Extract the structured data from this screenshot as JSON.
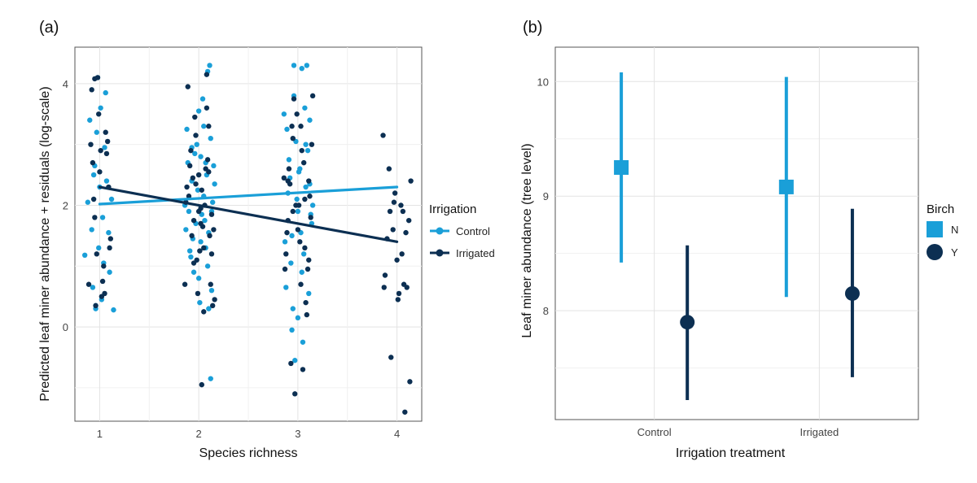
{
  "chart_data": [
    {
      "panel_label": "(a)",
      "type": "scatter",
      "title": "",
      "xlabel": "Species richness",
      "ylabel": "Predicted leaf miner abundance + residuals (log-scale)",
      "xlim": [
        0.75,
        4.25
      ],
      "ylim": [
        -1.55,
        4.6
      ],
      "x_ticks": [
        "1",
        "2",
        "3",
        "4"
      ],
      "y_ticks": [
        "0",
        "2",
        "4"
      ],
      "grid": true,
      "legend": {
        "title": "Irrigation",
        "position": "right",
        "entries": [
          "Control",
          "Irrigated"
        ]
      },
      "series": [
        {
          "name": "Control",
          "color": "#1a9fd8",
          "fit_line": {
            "x": [
              1,
              4
            ],
            "y": [
              2.02,
              2.3
            ]
          },
          "points": [
            [
              0.94,
              2.5
            ],
            [
              0.97,
              3.2
            ],
            [
              1.01,
              3.6
            ],
            [
              0.92,
              1.6
            ],
            [
              0.96,
              0.3
            ],
            [
              1.05,
              2.95
            ],
            [
              0.99,
              1.3
            ],
            [
              1.1,
              0.9
            ],
            [
              0.88,
              2.05
            ],
            [
              1.03,
              1.8
            ],
            [
              0.95,
              2.65
            ],
            [
              1.07,
              2.4
            ],
            [
              1.14,
              0.28
            ],
            [
              0.9,
              3.4
            ],
            [
              1.02,
              0.45
            ],
            [
              1.06,
              3.85
            ],
            [
              0.98,
              4.1
            ],
            [
              0.93,
              0.65
            ],
            [
              1.09,
              1.55
            ],
            [
              1.12,
              2.1
            ],
            [
              0.85,
              1.18
            ],
            [
              1.0,
              2.3
            ],
            [
              1.04,
              1.05
            ],
            [
              0.96,
              0.35
            ],
            [
              1.88,
              3.25
            ],
            [
              1.93,
              2.4
            ],
            [
              1.97,
              1.7
            ],
            [
              2.02,
              2.8
            ],
            [
              2.07,
              1.3
            ],
            [
              2.12,
              3.1
            ],
            [
              1.9,
              1.9
            ],
            [
              1.95,
              0.9
            ],
            [
              2.0,
              3.55
            ],
            [
              2.05,
              2.15
            ],
            [
              2.1,
              1.55
            ],
            [
              2.15,
              2.65
            ],
            [
              1.86,
              2.0
            ],
            [
              1.92,
              1.15
            ],
            [
              1.98,
              3.0
            ],
            [
              2.03,
              1.85
            ],
            [
              2.08,
              2.5
            ],
            [
              2.13,
              0.6
            ],
            [
              1.89,
              2.7
            ],
            [
              1.94,
              1.45
            ],
            [
              1.99,
              2.25
            ],
            [
              2.04,
              3.75
            ],
            [
              2.09,
              1.0
            ],
            [
              2.14,
              2.05
            ],
            [
              1.87,
              1.6
            ],
            [
              1.96,
              2.85
            ],
            [
              2.01,
              0.4
            ],
            [
              2.06,
              1.75
            ],
            [
              2.11,
              4.3
            ],
            [
              2.16,
              2.35
            ],
            [
              1.91,
              1.25
            ],
            [
              2.0,
              0.8
            ],
            [
              2.05,
              3.3
            ],
            [
              2.1,
              0.3
            ],
            [
              2.12,
              -0.85
            ],
            [
              2.09,
              4.2
            ],
            [
              1.93,
              2.95
            ],
            [
              2.02,
              1.4
            ],
            [
              2.07,
              2.7
            ],
            [
              2.13,
              1.9
            ],
            [
              2.86,
              3.5
            ],
            [
              2.9,
              2.2
            ],
            [
              2.94,
              1.5
            ],
            [
              2.98,
              3.05
            ],
            [
              3.02,
              2.6
            ],
            [
              3.06,
              1.2
            ],
            [
              3.1,
              2.9
            ],
            [
              3.14,
              1.7
            ],
            [
              2.88,
              0.65
            ],
            [
              2.92,
              2.45
            ],
            [
              2.96,
              3.8
            ],
            [
              3.0,
              1.9
            ],
            [
              3.04,
              0.9
            ],
            [
              3.08,
              2.3
            ],
            [
              3.12,
              3.4
            ],
            [
              2.87,
              1.4
            ],
            [
              2.91,
              2.75
            ],
            [
              2.95,
              0.3
            ],
            [
              2.99,
              2.1
            ],
            [
              3.03,
              1.55
            ],
            [
              3.07,
              3.6
            ],
            [
              3.11,
              0.55
            ],
            [
              3.15,
              2.0
            ],
            [
              2.89,
              3.25
            ],
            [
              2.93,
              1.05
            ],
            [
              2.97,
              -0.55
            ],
            [
              3.01,
              2.55
            ],
            [
              3.05,
              -0.25
            ],
            [
              3.09,
              4.3
            ],
            [
              3.13,
              1.85
            ],
            [
              2.96,
              4.3
            ],
            [
              3.04,
              4.25
            ],
            [
              3.0,
              0.15
            ],
            [
              2.94,
              -0.05
            ],
            [
              3.08,
              3.0
            ],
            [
              3.12,
              2.35
            ]
          ]
        },
        {
          "name": "Irrigated",
          "color": "#0c2f52",
          "fit_line": {
            "x": [
              1,
              4
            ],
            "y": [
              2.3,
              1.4
            ]
          },
          "points": [
            [
              0.93,
              2.7
            ],
            [
              0.97,
              1.2
            ],
            [
              1.01,
              2.9
            ],
            [
              1.05,
              0.55
            ],
            [
              1.09,
              2.3
            ],
            [
              0.91,
              3.0
            ],
            [
              0.95,
              1.8
            ],
            [
              0.99,
              3.5
            ],
            [
              1.03,
              0.75
            ],
            [
              1.07,
              2.85
            ],
            [
              1.11,
              1.45
            ],
            [
              0.89,
              0.7
            ],
            [
              0.94,
              2.1
            ],
            [
              0.98,
              4.1
            ],
            [
              1.02,
              0.5
            ],
            [
              1.06,
              3.2
            ],
            [
              1.1,
              1.3
            ],
            [
              0.92,
              3.9
            ],
            [
              0.96,
              0.35
            ],
            [
              1.0,
              2.55
            ],
            [
              1.04,
              1.0
            ],
            [
              1.08,
              3.05
            ],
            [
              0.95,
              4.08
            ],
            [
              1.88,
              2.3
            ],
            [
              1.93,
              1.5
            ],
            [
              1.97,
              3.15
            ],
            [
              2.02,
              1.95
            ],
            [
              2.07,
              2.6
            ],
            [
              2.12,
              0.7
            ],
            [
              1.9,
              2.15
            ],
            [
              1.95,
              1.75
            ],
            [
              2.0,
              2.5
            ],
            [
              2.05,
              1.3
            ],
            [
              2.1,
              3.3
            ],
            [
              2.15,
              1.6
            ],
            [
              1.86,
              0.7
            ],
            [
              1.92,
              2.9
            ],
            [
              1.98,
              1.1
            ],
            [
              2.03,
              2.25
            ],
            [
              2.08,
              3.6
            ],
            [
              2.13,
              1.85
            ],
            [
              1.89,
              3.95
            ],
            [
              1.94,
              2.45
            ],
            [
              1.99,
              0.55
            ],
            [
              2.04,
              1.65
            ],
            [
              2.09,
              2.75
            ],
            [
              2.14,
              0.35
            ],
            [
              1.87,
              2.05
            ],
            [
              1.96,
              3.45
            ],
            [
              2.01,
              1.25
            ],
            [
              2.06,
              2.0
            ],
            [
              2.11,
              1.5
            ],
            [
              2.16,
              0.45
            ],
            [
              1.91,
              2.65
            ],
            [
              2.0,
              1.9
            ],
            [
              2.05,
              0.25
            ],
            [
              2.08,
              4.15
            ],
            [
              2.03,
              -0.95
            ],
            [
              1.97,
              2.35
            ],
            [
              2.1,
              2.55
            ],
            [
              2.13,
              1.2
            ],
            [
              1.95,
              1.05
            ],
            [
              2.02,
              1.7
            ],
            [
              2.86,
              2.45
            ],
            [
              2.9,
              1.75
            ],
            [
              2.94,
              3.3
            ],
            [
              2.98,
              2.0
            ],
            [
              3.02,
              1.4
            ],
            [
              3.06,
              2.7
            ],
            [
              3.1,
              0.95
            ],
            [
              3.14,
              3.0
            ],
            [
              2.88,
              1.2
            ],
            [
              2.92,
              2.35
            ],
            [
              2.96,
              3.75
            ],
            [
              3.0,
              1.6
            ],
            [
              3.04,
              2.9
            ],
            [
              3.08,
              0.4
            ],
            [
              3.12,
              2.15
            ],
            [
              2.87,
              0.95
            ],
            [
              2.91,
              2.6
            ],
            [
              2.95,
              1.9
            ],
            [
              2.99,
              3.5
            ],
            [
              3.03,
              0.7
            ],
            [
              3.07,
              1.3
            ],
            [
              3.11,
              2.4
            ],
            [
              3.15,
              3.8
            ],
            [
              2.89,
              1.55
            ],
            [
              2.93,
              -0.6
            ],
            [
              2.97,
              -1.1
            ],
            [
              3.01,
              2.0
            ],
            [
              3.05,
              -0.7
            ],
            [
              3.09,
              0.2
            ],
            [
              3.13,
              1.8
            ],
            [
              2.95,
              3.1
            ],
            [
              3.03,
              3.3
            ],
            [
              3.07,
              2.1
            ],
            [
              2.9,
              2.4
            ],
            [
              3.11,
              1.1
            ],
            [
              3.86,
              3.15
            ],
            [
              3.9,
              1.45
            ],
            [
              3.94,
              -0.5
            ],
            [
              3.98,
              2.2
            ],
            [
              4.02,
              0.55
            ],
            [
              4.06,
              1.9
            ],
            [
              4.1,
              0.65
            ],
            [
              4.14,
              2.4
            ],
            [
              3.88,
              0.85
            ],
            [
              3.92,
              2.6
            ],
            [
              3.96,
              1.6
            ],
            [
              4.0,
              1.1
            ],
            [
              4.04,
              2.0
            ],
            [
              4.08,
              -1.4
            ],
            [
              4.12,
              1.75
            ],
            [
              3.87,
              0.65
            ],
            [
              3.93,
              1.9
            ],
            [
              3.97,
              2.05
            ],
            [
              4.01,
              0.45
            ],
            [
              4.05,
              1.2
            ],
            [
              4.09,
              1.55
            ],
            [
              4.13,
              -0.9
            ],
            [
              4.07,
              0.7
            ]
          ]
        }
      ]
    },
    {
      "panel_label": "(b)",
      "type": "scatter",
      "title": "",
      "xlabel": "Irrigation treatment",
      "ylabel": "Leaf miner abundance (tree level)",
      "categories": [
        "Control",
        "Irrigated"
      ],
      "ylim": [
        7.05,
        10.3
      ],
      "y_ticks": [
        "8",
        "9",
        "10"
      ],
      "grid": true,
      "legend": {
        "title": "Birch",
        "position": "right",
        "entries": [
          "N",
          "Y"
        ]
      },
      "series": [
        {
          "name": "N",
          "color": "#1a9fd8",
          "marker": "square",
          "x_offset": -0.2,
          "estimates": [
            9.25,
            9.08
          ],
          "lower": [
            8.42,
            8.12
          ],
          "upper": [
            10.08,
            10.04
          ]
        },
        {
          "name": "Y",
          "color": "#0c2f52",
          "marker": "circle",
          "x_offset": 0.2,
          "estimates": [
            7.9,
            8.15
          ],
          "lower": [
            7.22,
            7.42
          ],
          "upper": [
            8.57,
            8.89
          ]
        }
      ]
    }
  ]
}
